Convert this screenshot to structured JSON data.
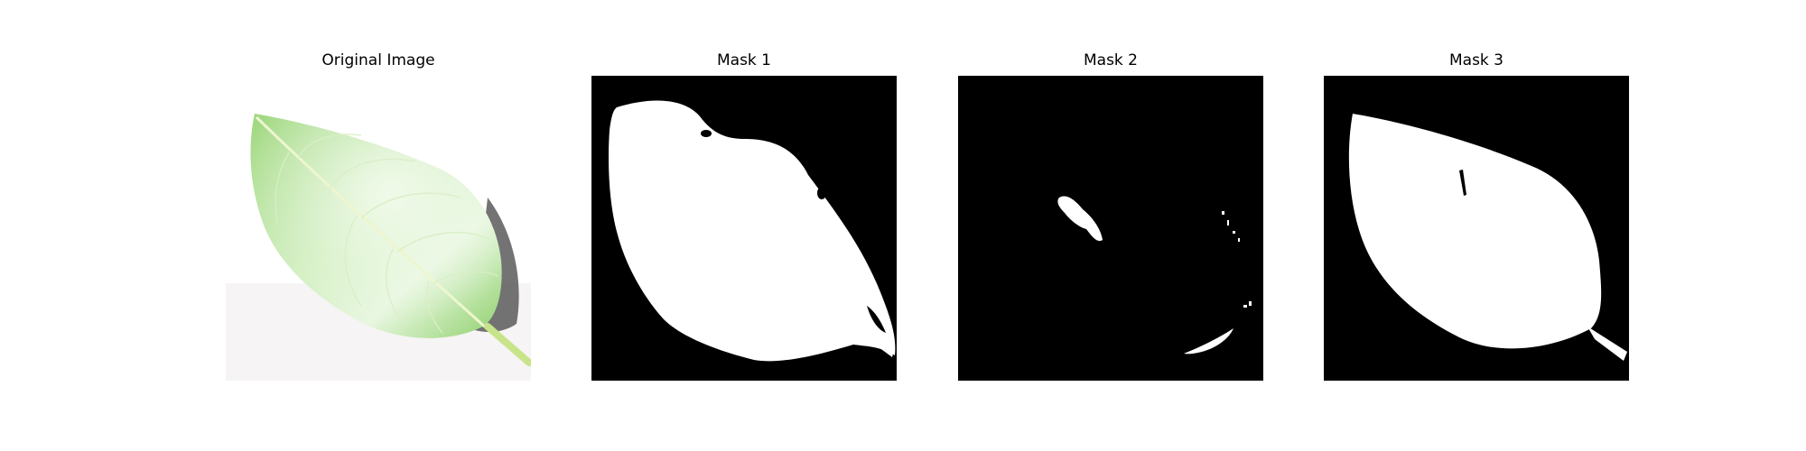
{
  "panels": [
    {
      "title": "Original Image",
      "image": "leaf-photo"
    },
    {
      "title": "Mask 1",
      "image": "segmentation-mask"
    },
    {
      "title": "Mask 2",
      "image": "segmentation-mask"
    },
    {
      "title": "Mask 3",
      "image": "segmentation-mask"
    }
  ],
  "colors": {
    "mask_background": "#000000",
    "mask_foreground": "#ffffff",
    "leaf_light": "#dff5d2",
    "leaf_mid": "#a8dc86",
    "leaf_dark": "#6fbf4f",
    "leaf_vein": "#f3f7d8",
    "shadow": "#5a5a5a"
  }
}
